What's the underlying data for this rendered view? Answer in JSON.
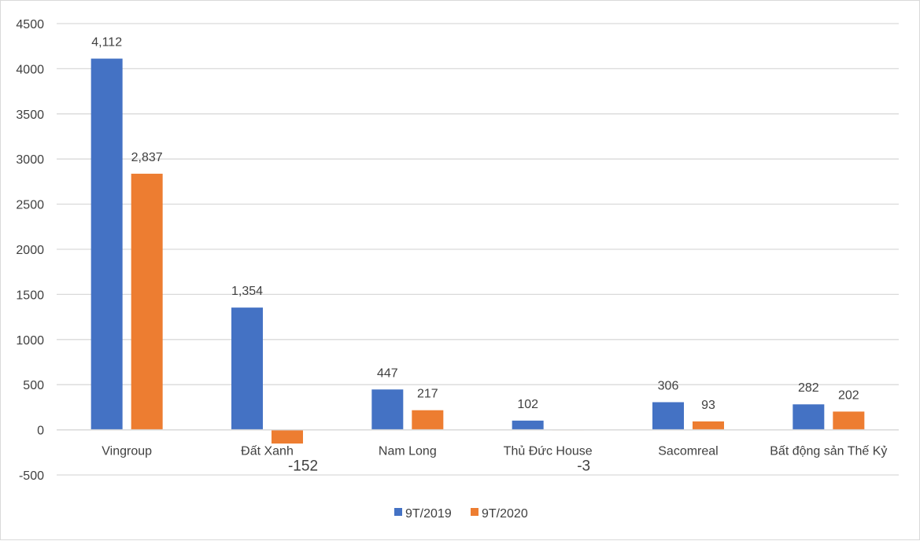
{
  "chart_data": {
    "type": "bar",
    "title": "",
    "xlabel": "",
    "ylabel": "",
    "ylim": [
      -500,
      4500
    ],
    "yticks": [
      -500,
      0,
      500,
      1000,
      1500,
      2000,
      2500,
      3000,
      3500,
      4000,
      4500
    ],
    "grid": true,
    "legend": "bottom",
    "categories": [
      "Vingroup",
      "Đất Xanh",
      "Nam Long",
      "Thủ Đức House",
      "Sacomreal",
      "Bất động sản Thế Kỷ"
    ],
    "series": [
      {
        "name": "9T/2019",
        "color": "#4472C4",
        "values": [
          4112,
          1354,
          447,
          102,
          306,
          282
        ],
        "labels": [
          "4,112",
          "1,354",
          "447",
          "102",
          "306",
          "282"
        ]
      },
      {
        "name": "9T/2020",
        "color": "#ED7D31",
        "values": [
          2837,
          -152,
          217,
          -3,
          93,
          202
        ],
        "labels": [
          "2,837",
          "-152",
          "217",
          "-3",
          "93",
          "202"
        ]
      }
    ]
  }
}
